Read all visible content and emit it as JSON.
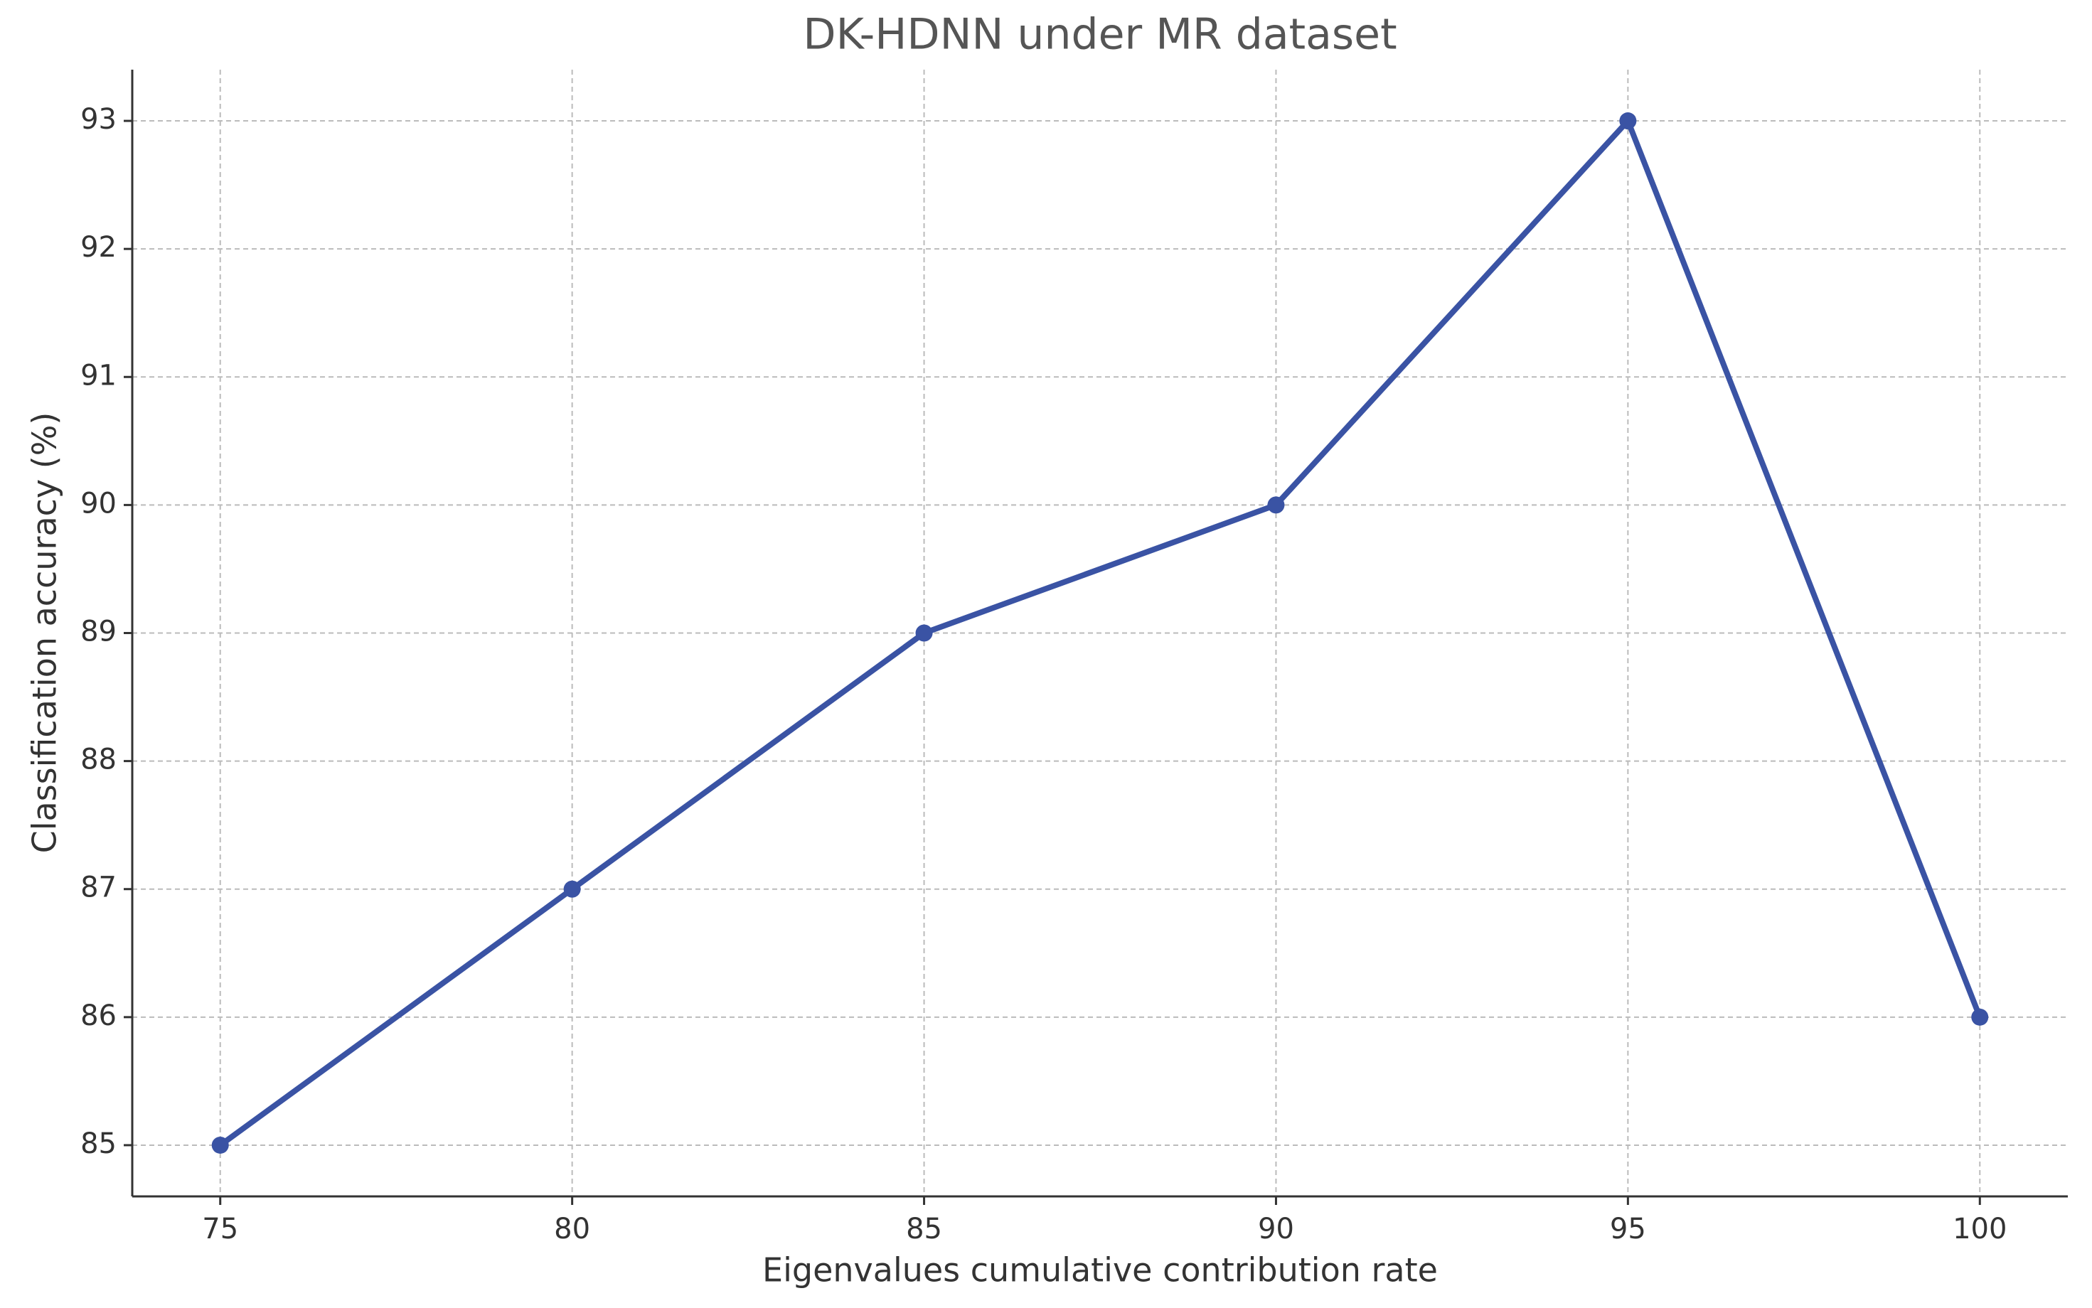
{
  "chart_data": {
    "type": "line",
    "title": "DK-HDNN under MR dataset",
    "x_label": "Eigenvalues cumulative contribution rate",
    "y_label": "Classification accuracy (%)",
    "x": [
      75,
      80,
      85,
      90,
      95,
      100
    ],
    "series": [
      {
        "name": "DK-HDNN",
        "color": "#3a53a4",
        "values": [
          85,
          87,
          89,
          90,
          93,
          86
        ]
      }
    ],
    "xlim": [
      73.75,
      101.25
    ],
    "ylim": [
      84.6,
      93.4
    ],
    "xticks": [
      75,
      80,
      85,
      90,
      95,
      100
    ],
    "yticks": [
      85,
      86,
      87,
      88,
      89,
      90,
      91,
      92,
      93
    ],
    "grid": true
  }
}
